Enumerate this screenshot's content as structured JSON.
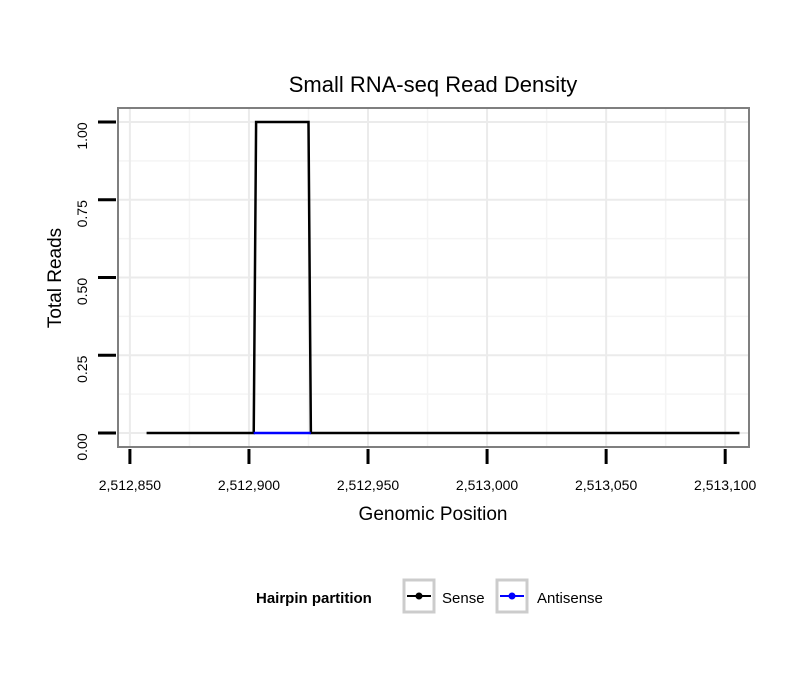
{
  "chart_data": {
    "type": "line",
    "title": "Small RNA-seq Read Density",
    "xlabel": "Genomic Position",
    "ylabel": "Total Reads",
    "xlim": [
      2512845,
      2513110
    ],
    "ylim": [
      -0.045,
      1.045
    ],
    "xticks": [
      2512850,
      2512900,
      2512950,
      2513000,
      2513050,
      2513100
    ],
    "xtick_labels": [
      "2,512,850",
      "2,512,900",
      "2,512,950",
      "2,513,000",
      "2,513,050",
      "2,513,100"
    ],
    "yticks": [
      0,
      0.25,
      0.5,
      0.75,
      1.0
    ],
    "ytick_labels": [
      "0.00",
      "0.25",
      "0.50",
      "0.75",
      "1.00"
    ],
    "grid": true,
    "legend": {
      "title": "Hairpin partition",
      "position": "bottom"
    },
    "series": [
      {
        "name": "Sense",
        "color": "#000000",
        "x": [
          2512857,
          2512902,
          2512903,
          2512925,
          2512926,
          2513106
        ],
        "y": [
          0,
          0,
          1,
          1,
          0,
          0
        ]
      },
      {
        "name": "Antisense",
        "color": "#0000ff",
        "x": [
          2512902,
          2512926
        ],
        "y": [
          0,
          0
        ]
      }
    ]
  }
}
